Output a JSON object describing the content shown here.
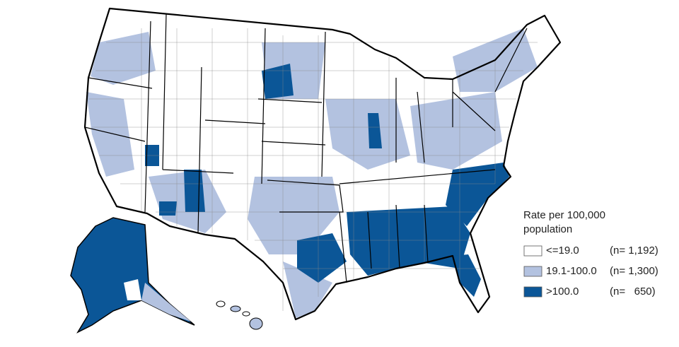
{
  "legend": {
    "title_lines": [
      "Rate per 100,000",
      "population"
    ],
    "items": [
      {
        "label": "<=19.0",
        "count": "(n= 1,192)",
        "color": "#ffffff"
      },
      {
        "label": "19.1-100.0",
        "count": "(n= 1,300)",
        "color": "#b3c2e0"
      },
      {
        "label": ">100.0",
        "count": "(n=   650)",
        "color": "#0b5697"
      }
    ]
  }
}
